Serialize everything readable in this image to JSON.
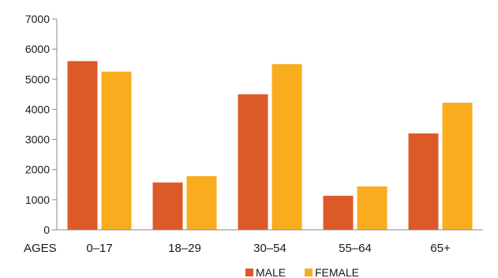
{
  "chart_data": {
    "type": "bar",
    "xlabel": "AGES",
    "categories": [
      "0–17",
      "18–29",
      "30–54",
      "55–64",
      "65+"
    ],
    "series": [
      {
        "name": "MALE",
        "color": "#dc5a27",
        "values": [
          5600,
          1570,
          4500,
          1130,
          3200
        ]
      },
      {
        "name": "FEMALE",
        "color": "#f9ac1d",
        "values": [
          5250,
          1780,
          5500,
          1440,
          4220
        ]
      }
    ],
    "ylim": [
      0,
      7000
    ],
    "yticks": [
      0,
      1000,
      2000,
      3000,
      4000,
      5000,
      6000,
      7000
    ],
    "grid": false,
    "legend_position": "bottom-center"
  }
}
